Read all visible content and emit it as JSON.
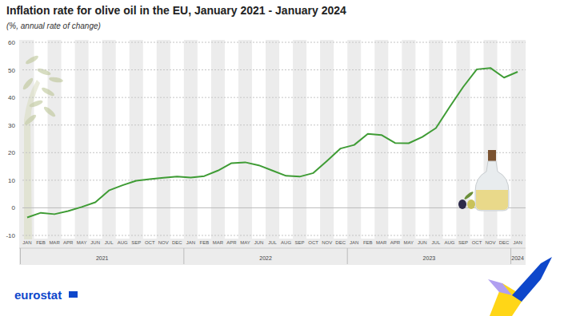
{
  "chart_data": {
    "type": "line",
    "title": "Inflation rate for olive oil in the EU, January 2021 - January 2024",
    "subtitle": "(%, annual rate of change)",
    "source": "eurostat",
    "categories": [
      "JAN",
      "FEB",
      "MAR",
      "APR",
      "MAY",
      "JUN",
      "JUL",
      "AUG",
      "SEP",
      "OCT",
      "NOV",
      "DEC",
      "JAN",
      "FEB",
      "MAR",
      "APR",
      "MAY",
      "JUN",
      "JUL",
      "AUG",
      "SEP",
      "OCT",
      "NOV",
      "DEC",
      "JAN",
      "FEB",
      "MAR",
      "APR",
      "MAY",
      "JUN",
      "JUL",
      "AUG",
      "SEP",
      "OCT",
      "NOV",
      "DEC",
      "JAN"
    ],
    "years": [
      "2021",
      "2022",
      "2023",
      "2024"
    ],
    "values": [
      -3.5,
      -1.8,
      -2.3,
      -1.2,
      0.3,
      2.0,
      6.3,
      8.2,
      9.8,
      10.4,
      10.9,
      11.3,
      11.0,
      11.5,
      13.5,
      16.2,
      16.5,
      15.4,
      13.5,
      11.6,
      11.3,
      12.6,
      17.0,
      21.5,
      22.8,
      26.8,
      26.4,
      23.5,
      23.4,
      25.7,
      28.9,
      36.5,
      43.8,
      50.2,
      50.7,
      47.2,
      49.3
    ],
    "color": "#3f9c35",
    "ylim": [
      -10,
      60
    ],
    "yticks": [
      -10,
      0,
      10,
      20,
      30,
      40,
      50,
      60
    ],
    "grid": true
  }
}
